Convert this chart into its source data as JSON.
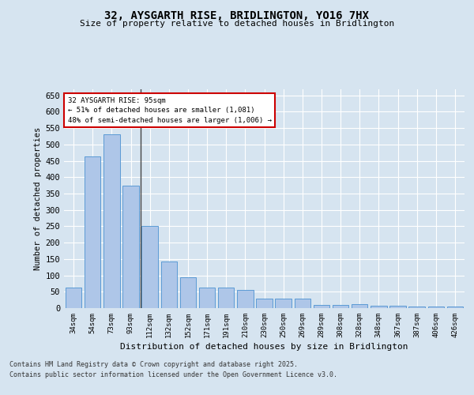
{
  "title": "32, AYSGARTH RISE, BRIDLINGTON, YO16 7HX",
  "subtitle": "Size of property relative to detached houses in Bridlington",
  "xlabel": "Distribution of detached houses by size in Bridlington",
  "ylabel": "Number of detached properties",
  "categories": [
    "34sqm",
    "54sqm",
    "73sqm",
    "93sqm",
    "112sqm",
    "132sqm",
    "152sqm",
    "171sqm",
    "191sqm",
    "210sqm",
    "230sqm",
    "250sqm",
    "269sqm",
    "289sqm",
    "308sqm",
    "328sqm",
    "348sqm",
    "367sqm",
    "387sqm",
    "406sqm",
    "426sqm"
  ],
  "values": [
    62,
    463,
    530,
    375,
    250,
    143,
    95,
    63,
    63,
    55,
    28,
    28,
    28,
    10,
    10,
    12,
    7,
    7,
    4,
    5,
    4
  ],
  "bar_color": "#aec6e8",
  "bar_edge_color": "#5b9bd5",
  "highlight_index": 4,
  "annotation_line1": "32 AYSGARTH RISE: 95sqm",
  "annotation_line2": "← 51% of detached houses are smaller (1,081)",
  "annotation_line3": "48% of semi-detached houses are larger (1,006) →",
  "annotation_box_color": "#ffffff",
  "annotation_box_edge_color": "#cc0000",
  "ylim": [
    0,
    670
  ],
  "yticks": [
    0,
    50,
    100,
    150,
    200,
    250,
    300,
    350,
    400,
    450,
    500,
    550,
    600,
    650
  ],
  "background_color": "#d6e4f0",
  "plot_bg_color": "#d6e4f0",
  "grid_color": "#ffffff",
  "footnote1": "Contains HM Land Registry data © Crown copyright and database right 2025.",
  "footnote2": "Contains public sector information licensed under the Open Government Licence v3.0."
}
